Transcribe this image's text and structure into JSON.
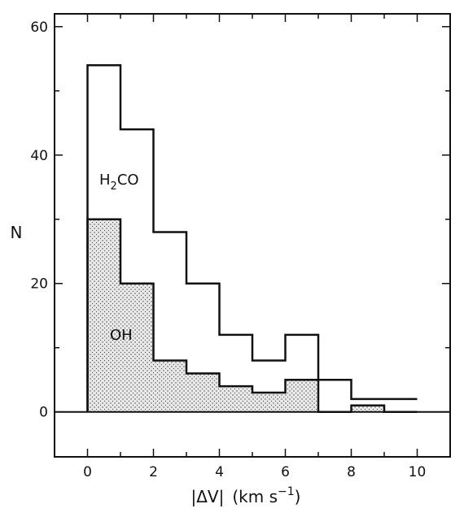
{
  "chart_data": {
    "type": "histogram",
    "title": "",
    "xlabel_parts": {
      "abs_open": "|",
      "delta_v": "ΔV",
      "abs_close": "|",
      "unit_open": "(km s",
      "unit_exp": "−1",
      "unit_close": ")"
    },
    "ylabel": "N",
    "xlim": [
      -1,
      11
    ],
    "ylim": [
      -7,
      62
    ],
    "xticks": [
      0,
      2,
      4,
      6,
      8,
      10
    ],
    "yticks": [
      0,
      20,
      40,
      60
    ],
    "grid": false,
    "bin_edges": [
      0,
      1,
      2,
      3,
      4,
      5,
      6,
      7,
      8,
      9,
      10
    ],
    "series": [
      {
        "name": "H2CO",
        "label_parts": {
          "main": "H",
          "sub": "2",
          "rest": "CO"
        },
        "style": "outline",
        "values": [
          54,
          44,
          28,
          20,
          12,
          8,
          12,
          5,
          2,
          2
        ]
      },
      {
        "name": "OH",
        "label_parts": {
          "main": "OH",
          "sub": "",
          "rest": ""
        },
        "style": "stippled",
        "values": [
          30,
          20,
          8,
          6,
          4,
          3,
          5,
          0,
          1,
          0
        ]
      }
    ],
    "colors": {
      "ink": "#111111",
      "stipple": "#444444",
      "fill_bg": "#e8e8e8"
    }
  }
}
